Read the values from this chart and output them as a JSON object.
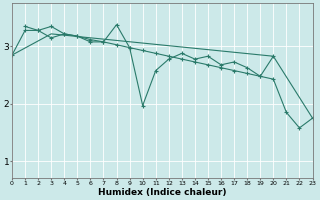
{
  "xlabel": "Humidex (Indice chaleur)",
  "background_color": "#cce9e9",
  "grid_color": "#ffffff",
  "line_color": "#2a7a6a",
  "xlim": [
    0,
    23
  ],
  "ylim": [
    0.7,
    3.75
  ],
  "yticks": [
    1,
    2,
    3
  ],
  "xticks": [
    0,
    1,
    2,
    3,
    4,
    5,
    6,
    7,
    8,
    9,
    10,
    11,
    12,
    13,
    14,
    15,
    16,
    17,
    18,
    19,
    20,
    21,
    22,
    23
  ],
  "line1_x": [
    0,
    1,
    2,
    3,
    4,
    5,
    6,
    7,
    8,
    9,
    10,
    11,
    12,
    13,
    14,
    15,
    16,
    17,
    18,
    19,
    20,
    21,
    22,
    23
  ],
  "line1_y": [
    2.85,
    3.28,
    3.28,
    3.15,
    3.22,
    3.18,
    3.12,
    3.08,
    3.03,
    2.98,
    2.93,
    2.88,
    2.83,
    2.78,
    2.73,
    2.68,
    2.63,
    2.58,
    2.53,
    2.48,
    2.43,
    1.85,
    1.58,
    1.75
  ],
  "line2_x": [
    1,
    2,
    3,
    4,
    5,
    6,
    7,
    8,
    9,
    10,
    11,
    12,
    13,
    14,
    15,
    16,
    17,
    18,
    19,
    20
  ],
  "line2_y": [
    3.35,
    3.28,
    3.35,
    3.22,
    3.18,
    3.08,
    3.08,
    3.38,
    2.98,
    1.97,
    2.58,
    2.78,
    2.88,
    2.78,
    2.83,
    2.68,
    2.73,
    2.63,
    2.48,
    2.83
  ],
  "line3_x": [
    0,
    3,
    20,
    23
  ],
  "line3_y": [
    2.85,
    3.22,
    2.83,
    1.75
  ]
}
